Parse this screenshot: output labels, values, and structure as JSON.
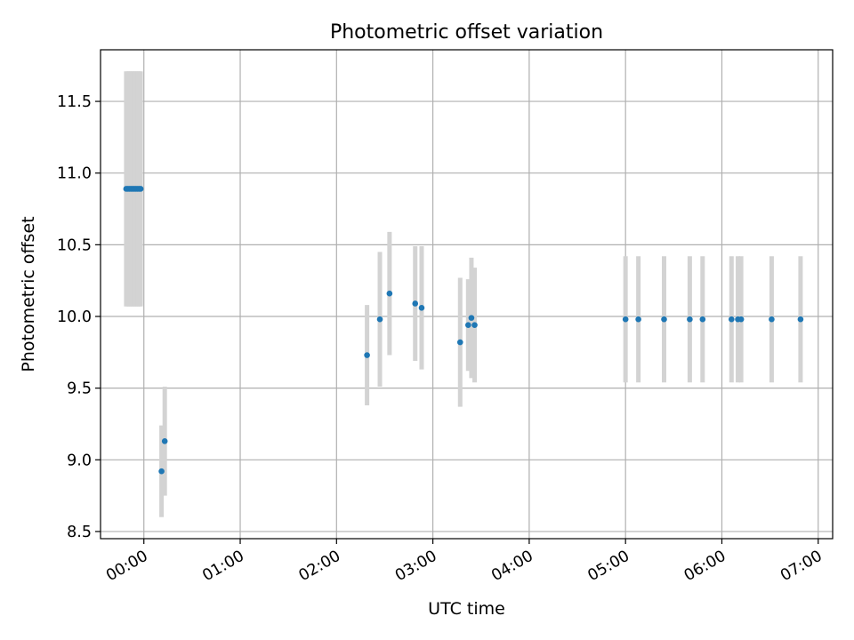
{
  "chart_data": {
    "type": "scatter",
    "title": "Photometric offset variation",
    "xlabel": "UTC time",
    "ylabel": "Photometric offset",
    "grid": true,
    "legend": "none",
    "colors": {
      "point": "#1f77b4",
      "errorbar": "#d3d3d3",
      "grid": "#b0b0b0"
    },
    "xlim": [
      "-00:27",
      "07:09"
    ],
    "ylim": [
      8.45,
      11.86
    ],
    "xticks": [
      "00:00",
      "01:00",
      "02:00",
      "03:00",
      "04:00",
      "05:00",
      "06:00",
      "07:00"
    ],
    "yticks": [
      "8.5",
      "9.0",
      "9.5",
      "10.0",
      "10.5",
      "11.0",
      "11.5"
    ],
    "points": [
      {
        "x": "-00:11",
        "y": 10.89,
        "err": 0.82
      },
      {
        "x": "-00:10",
        "y": 10.89,
        "err": 0.82
      },
      {
        "x": "-00:09",
        "y": 10.89,
        "err": 0.82
      },
      {
        "x": "-00:08",
        "y": 10.89,
        "err": 0.82
      },
      {
        "x": "-00:07",
        "y": 10.89,
        "err": 0.82
      },
      {
        "x": "-00:06",
        "y": 10.89,
        "err": 0.82
      },
      {
        "x": "-00:05",
        "y": 10.89,
        "err": 0.82
      },
      {
        "x": "-00:04",
        "y": 10.89,
        "err": 0.82
      },
      {
        "x": "-00:03",
        "y": 10.89,
        "err": 0.82
      },
      {
        "x": "-00:02",
        "y": 10.89,
        "err": 0.82
      },
      {
        "x": "00:11",
        "y": 8.92,
        "err": 0.32
      },
      {
        "x": "00:13",
        "y": 9.13,
        "err": 0.38
      },
      {
        "x": "02:19",
        "y": 9.73,
        "err": 0.35
      },
      {
        "x": "02:27",
        "y": 9.98,
        "err": 0.47
      },
      {
        "x": "02:33",
        "y": 10.16,
        "err": 0.43
      },
      {
        "x": "02:49",
        "y": 10.09,
        "err": 0.4
      },
      {
        "x": "02:53",
        "y": 10.06,
        "err": 0.43
      },
      {
        "x": "03:17",
        "y": 9.82,
        "err": 0.45
      },
      {
        "x": "03:22",
        "y": 9.94,
        "err": 0.32
      },
      {
        "x": "03:24",
        "y": 9.99,
        "err": 0.42
      },
      {
        "x": "03:26",
        "y": 9.94,
        "err": 0.4
      },
      {
        "x": "05:00",
        "y": 9.98,
        "err": 0.44
      },
      {
        "x": "05:08",
        "y": 9.98,
        "err": 0.44
      },
      {
        "x": "05:24",
        "y": 9.98,
        "err": 0.44
      },
      {
        "x": "05:40",
        "y": 9.98,
        "err": 0.44
      },
      {
        "x": "05:48",
        "y": 9.98,
        "err": 0.44
      },
      {
        "x": "06:06",
        "y": 9.98,
        "err": 0.44
      },
      {
        "x": "06:10",
        "y": 9.98,
        "err": 0.44
      },
      {
        "x": "06:12",
        "y": 9.98,
        "err": 0.44
      },
      {
        "x": "06:31",
        "y": 9.98,
        "err": 0.44
      },
      {
        "x": "06:49",
        "y": 9.98,
        "err": 0.44
      }
    ]
  }
}
